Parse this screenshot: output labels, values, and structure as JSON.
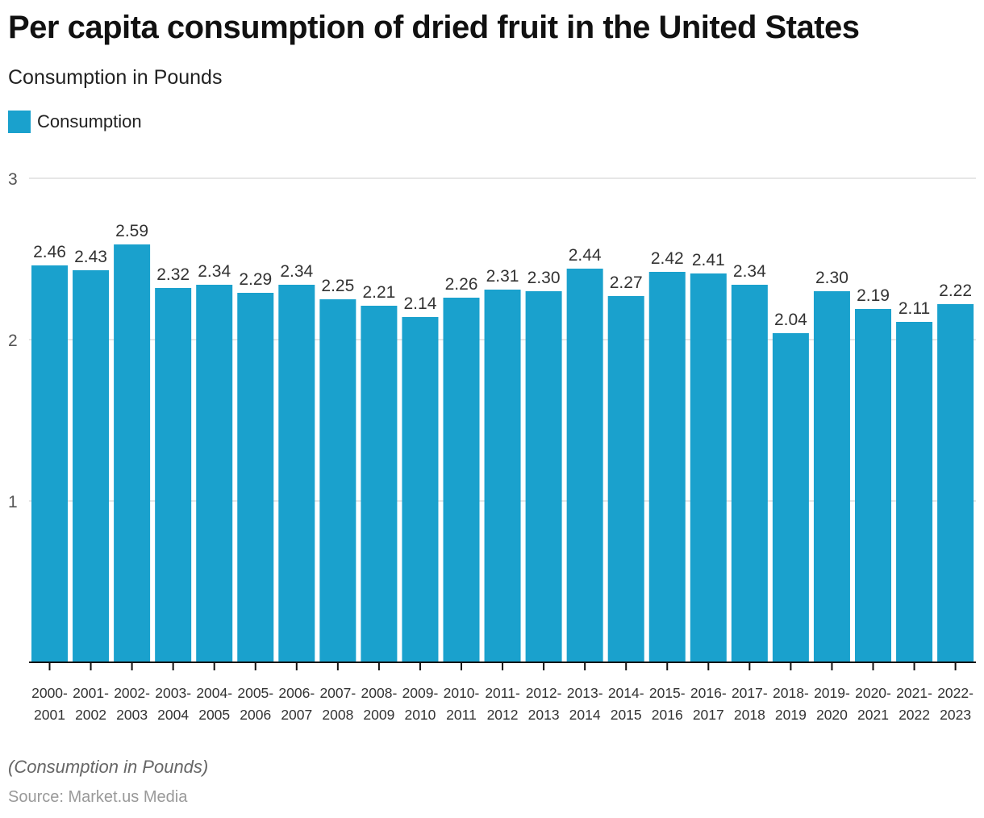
{
  "header": {
    "title": "Per capita consumption of dried fruit in the United States",
    "subtitle": "Consumption in Pounds"
  },
  "legend": {
    "items": [
      {
        "label": "Consumption",
        "color": "#1aa1cd"
      }
    ]
  },
  "footer": {
    "note": "(Consumption in Pounds)",
    "source": "Source: Market.us Media"
  },
  "chart_data": {
    "type": "bar",
    "title": "Per capita consumption of dried fruit in the United States",
    "subtitle": "Consumption in Pounds",
    "xlabel": "",
    "ylabel": "",
    "ylim": [
      0,
      3
    ],
    "yticks": [
      1,
      2,
      3
    ],
    "grid": true,
    "legend_position": "top-left",
    "bar_color": "#1aa1cd",
    "categories": [
      [
        "2000-",
        "2001"
      ],
      [
        "2001-",
        "2002"
      ],
      [
        "2002-",
        "2003"
      ],
      [
        "2003-",
        "2004"
      ],
      [
        "2004-",
        "2005"
      ],
      [
        "2005-",
        "2006"
      ],
      [
        "2006-",
        "2007"
      ],
      [
        "2007-",
        "2008"
      ],
      [
        "2008-",
        "2009"
      ],
      [
        "2009-",
        "2010"
      ],
      [
        "2010-",
        "2011"
      ],
      [
        "2011-",
        "2012"
      ],
      [
        "2012-",
        "2013"
      ],
      [
        "2013-",
        "2014"
      ],
      [
        "2014-",
        "2015"
      ],
      [
        "2015-",
        "2016"
      ],
      [
        "2016-",
        "2017"
      ],
      [
        "2017-",
        "2018"
      ],
      [
        "2018-",
        "2019"
      ],
      [
        "2019-",
        "2020"
      ],
      [
        "2020-",
        "2021"
      ],
      [
        "2021-",
        "2022"
      ],
      [
        "2022-",
        "2023"
      ]
    ],
    "series": [
      {
        "name": "Consumption",
        "values": [
          2.46,
          2.43,
          2.59,
          2.32,
          2.34,
          2.29,
          2.34,
          2.25,
          2.21,
          2.14,
          2.26,
          2.31,
          2.3,
          2.44,
          2.27,
          2.42,
          2.41,
          2.34,
          2.04,
          2.3,
          2.19,
          2.11,
          2.22
        ],
        "labels": [
          "2.46",
          "2.43",
          "2.59",
          "2.32",
          "2.34",
          "2.29",
          "2.34",
          "2.25",
          "2.21",
          "2.14",
          "2.26",
          "2.31",
          "2.30",
          "2.44",
          "2.27",
          "2.42",
          "2.41",
          "2.34",
          "2.04",
          "2.30",
          "2.19",
          "2.11",
          "2.22"
        ]
      }
    ]
  }
}
